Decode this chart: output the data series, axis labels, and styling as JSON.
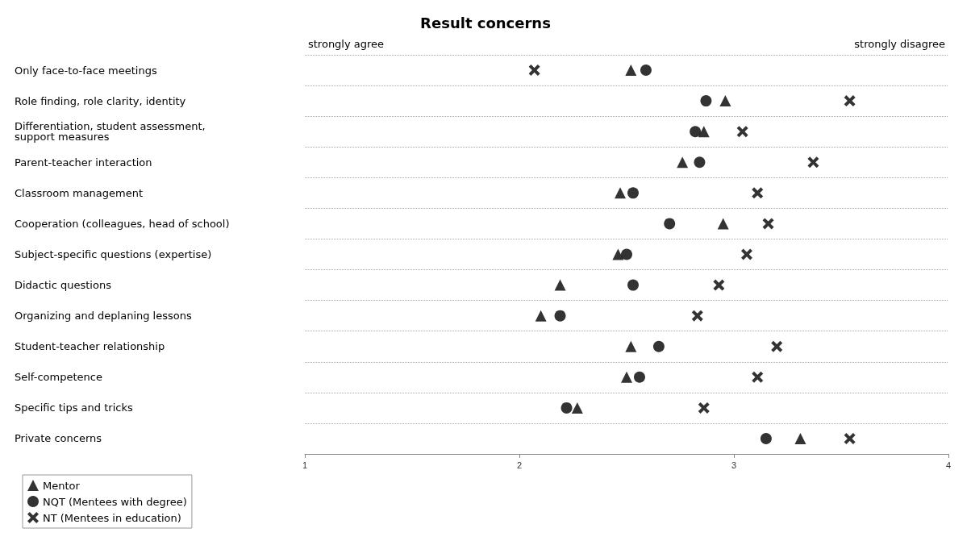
{
  "chart_data": {
    "type": "scatter",
    "title": "Result concerns",
    "categories": [
      "Only face-to-face meetings",
      "Role finding, role clarity, identity",
      "Differentiation, student assessment, support measures",
      "Parent-teacher interaction",
      "Classroom management",
      "Cooperation (colleagues, head of school)",
      "Subject-specific questions (expertise)",
      "Didactic questions",
      "Organizing and deplaning lessons",
      "Student-teacher relationship",
      "Self-competence",
      "Specific tips and tricks",
      "Private concerns"
    ],
    "series": [
      {
        "name": "Mentor",
        "color": "#000000",
        "marker": "triangle",
        "values": [
          2.52,
          2.96,
          2.86,
          2.76,
          2.47,
          2.95,
          2.46,
          2.19,
          2.1,
          2.52,
          2.5,
          2.27,
          3.31
        ]
      },
      {
        "name": "NQT (Mentees with degree)",
        "color": "#000000",
        "marker": "circle",
        "values": [
          2.59,
          2.87,
          2.82,
          2.84,
          2.53,
          2.7,
          2.5,
          2.53,
          2.19,
          2.65,
          2.56,
          2.22,
          3.15
        ]
      },
      {
        "name": "NT (Mentees in education)",
        "color": "#000000",
        "marker": "cross",
        "values": [
          2.07,
          3.54,
          3.04,
          3.37,
          3.11,
          3.16,
          3.06,
          2.93,
          2.83,
          3.2,
          3.11,
          2.86,
          3.54
        ]
      }
    ],
    "xlim": [
      1,
      4
    ],
    "xticks": [
      1,
      2,
      3,
      4
    ],
    "annotations": [
      "strongly agree",
      "strongly disagree"
    ],
    "grid": "y",
    "legend": "bottom left",
    "orientation": "horizontal"
  }
}
